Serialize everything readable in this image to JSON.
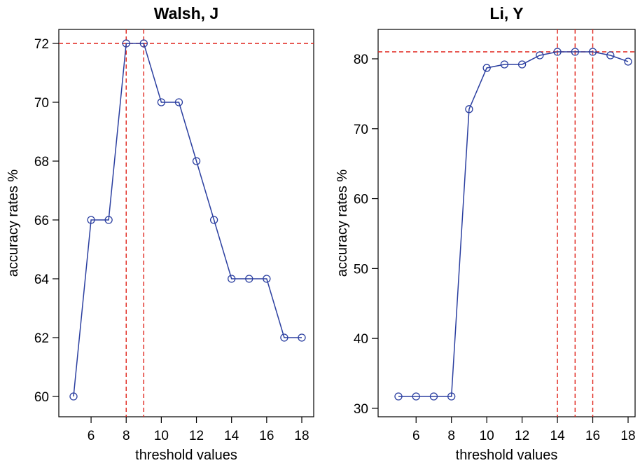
{
  "chart_data": [
    {
      "type": "line",
      "title": "Walsh, J",
      "xlabel": "threshold values",
      "ylabel": "accuracy rates %",
      "xlim": [
        5,
        18
      ],
      "ylim": [
        60,
        72
      ],
      "x_ticks": [
        6,
        8,
        10,
        12,
        14,
        16,
        18
      ],
      "y_ticks": [
        60,
        62,
        64,
        66,
        68,
        70,
        72
      ],
      "x_tick_labels": [
        "6",
        "8",
        "10",
        "12",
        "14",
        "16",
        "18"
      ],
      "y_tick_labels": [
        "60",
        "62",
        "64",
        "66",
        "68",
        "70",
        "72"
      ],
      "series": [
        {
          "x": [
            5,
            6,
            7,
            8,
            9,
            10,
            11,
            12,
            13,
            14,
            15,
            16,
            17,
            18
          ],
          "values": [
            60,
            66,
            66,
            72,
            72,
            70,
            70,
            68,
            66,
            64,
            64,
            64,
            62,
            62
          ]
        }
      ],
      "reference_lines": {
        "horizontal": [
          72
        ],
        "vertical": [
          8,
          9
        ]
      },
      "line_color": "#2b3fa0",
      "reference_color": "#e0241b",
      "grid": false
    },
    {
      "type": "line",
      "title": "Li, Y",
      "xlabel": "threshold values",
      "ylabel": "accuracy rates %",
      "xlim": [
        5,
        18
      ],
      "ylim": [
        31.7,
        81
      ],
      "x_ticks": [
        6,
        8,
        10,
        12,
        14,
        16,
        18
      ],
      "y_ticks": [
        30,
        40,
        50,
        60,
        70,
        80
      ],
      "x_tick_labels": [
        "6",
        "8",
        "10",
        "12",
        "14",
        "16",
        "18"
      ],
      "y_tick_labels": [
        "30",
        "40",
        "50",
        "60",
        "70",
        "80"
      ],
      "series": [
        {
          "x": [
            5,
            6,
            7,
            8,
            9,
            10,
            11,
            12,
            13,
            14,
            15,
            16,
            17,
            18
          ],
          "values": [
            31.7,
            31.7,
            31.7,
            31.7,
            72.8,
            78.7,
            79.2,
            79.2,
            80.5,
            81,
            81,
            81,
            80.5,
            79.6
          ]
        }
      ],
      "reference_lines": {
        "horizontal": [
          81
        ],
        "vertical": [
          14,
          15,
          16
        ]
      },
      "line_color": "#2b3fa0",
      "reference_color": "#e0241b",
      "grid": false
    }
  ]
}
